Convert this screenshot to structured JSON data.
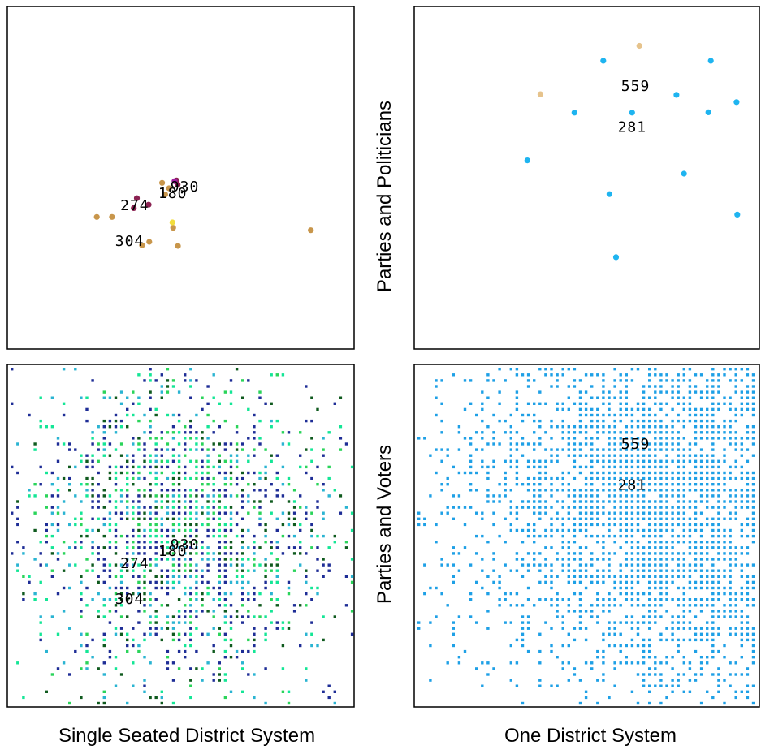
{
  "titles": {
    "col_left": "Single Seated District System",
    "col_right": "One District System",
    "row_top": "Parties and Politicians",
    "row_bottom": "Parties and Voters"
  },
  "chart_data": [
    {
      "type": "scatter",
      "panel": "top-left",
      "xlim": [
        0,
        100
      ],
      "ylim": [
        0,
        100
      ],
      "series": [
        {
          "color": "#c8964b",
          "points": [
            [
              45.5,
              45.1
            ],
            [
              46.6,
              46.9
            ],
            [
              25.7,
              38.5
            ],
            [
              30.1,
              38.5
            ],
            [
              40.9,
              31.2
            ],
            [
              49.2,
              30.0
            ],
            [
              87.7,
              34.6
            ],
            [
              38.8,
              30.2
            ],
            [
              47.8,
              35.3
            ],
            [
              44.6,
              48.5
            ]
          ]
        },
        {
          "color": "#8b2252",
          "points": [
            [
              36.4,
              41.1
            ],
            [
              37.3,
              44.0
            ],
            [
              40.7,
              42.1
            ],
            [
              49.1,
              48.0
            ],
            [
              48.8,
              49.2
            ]
          ]
        },
        {
          "color": "#f2dd3c",
          "points": [
            [
              47.6,
              36.9
            ]
          ]
        },
        {
          "color": "#a020a0",
          "points": [
            [
              48.2,
              49.0
            ]
          ]
        }
      ],
      "labels": [
        {
          "text": "930",
          "x": 47.0,
          "y": 46.0
        },
        {
          "text": "180",
          "x": 43.5,
          "y": 44.0
        },
        {
          "text": "274",
          "x": 32.5,
          "y": 40.5
        },
        {
          "text": "304",
          "x": 31.0,
          "y": 30.0
        }
      ]
    },
    {
      "type": "scatter",
      "panel": "top-right",
      "xlim": [
        0,
        100
      ],
      "ylim": [
        0,
        100
      ],
      "series": [
        {
          "color": "#1eb4f0",
          "points": [
            [
              54.8,
              84.3
            ],
            [
              86.1,
              84.3
            ],
            [
              46.4,
              69.1
            ],
            [
              63.2,
              69.1
            ],
            [
              76.1,
              74.3
            ],
            [
              85.4,
              69.2
            ],
            [
              93.6,
              72.2
            ],
            [
              32.7,
              55.1
            ],
            [
              78.3,
              51.2
            ],
            [
              56.6,
              45.2
            ],
            [
              93.8,
              39.2
            ],
            [
              58.5,
              26.7
            ]
          ]
        },
        {
          "color": "#e6c38c",
          "points": [
            [
              65.3,
              88.7
            ],
            [
              36.5,
              74.5
            ]
          ]
        }
      ],
      "labels": [
        {
          "text": "559",
          "x": 60.0,
          "y": 75.5
        },
        {
          "text": "281",
          "x": 59.0,
          "y": 63.5
        }
      ]
    },
    {
      "type": "scatter",
      "panel": "bottom-left",
      "xlim": [
        0,
        100
      ],
      "ylim": [
        0,
        100
      ],
      "colors": [
        "#1e2d96",
        "#1e2d96",
        "#2ad45a",
        "#14e696",
        "#2ab4d2",
        "#0f5a1e"
      ],
      "distribution": "dense elliptical cloud of voter points centred near the party labels",
      "labels": [
        {
          "text": "930",
          "x": 47.0,
          "y": 46.0
        },
        {
          "text": "180",
          "x": 43.5,
          "y": 44.0
        },
        {
          "text": "274",
          "x": 32.5,
          "y": 40.5
        },
        {
          "text": "304",
          "x": 31.0,
          "y": 30.0
        }
      ]
    },
    {
      "type": "scatter",
      "panel": "bottom-right",
      "xlim": [
        0,
        100
      ],
      "ylim": [
        0,
        100
      ],
      "colors": [
        "#1ea0e6"
      ],
      "distribution": "dense elliptical cloud of voter points centred toward the upper right",
      "labels": [
        {
          "text": "559",
          "x": 60.0,
          "y": 75.5
        },
        {
          "text": "281",
          "x": 59.0,
          "y": 63.5
        }
      ]
    }
  ]
}
